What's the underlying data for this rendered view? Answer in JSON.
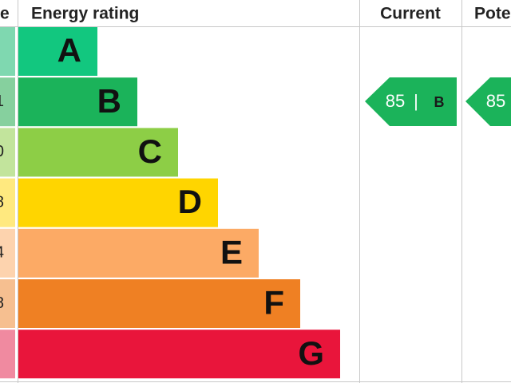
{
  "header": {
    "score": "e",
    "rating": "Energy rating",
    "current": "Current",
    "potential": "Pote"
  },
  "bands": [
    {
      "letter": "A",
      "color": "#12c77f",
      "tint": "#7fd8b0"
    },
    {
      "letter": "B",
      "score": "1",
      "color": "#1bb35a",
      "tint": "#86d09e"
    },
    {
      "letter": "C",
      "score": "0",
      "color": "#8dce46",
      "tint": "#c2e49c"
    },
    {
      "letter": "D",
      "score": "8",
      "color": "#ffd500",
      "tint": "#ffe97f"
    },
    {
      "letter": "E",
      "score": "4",
      "color": "#fcaa65",
      "tint": "#fdd3ae"
    },
    {
      "letter": "F",
      "score": "8",
      "color": "#ef8023",
      "tint": "#f6bf90"
    },
    {
      "letter": "G",
      "color": "#e9153b",
      "tint": "#f08aa0"
    }
  ],
  "current": {
    "value": "85",
    "separator": "|",
    "letter": "B"
  },
  "potential": {
    "value": "85"
  }
}
